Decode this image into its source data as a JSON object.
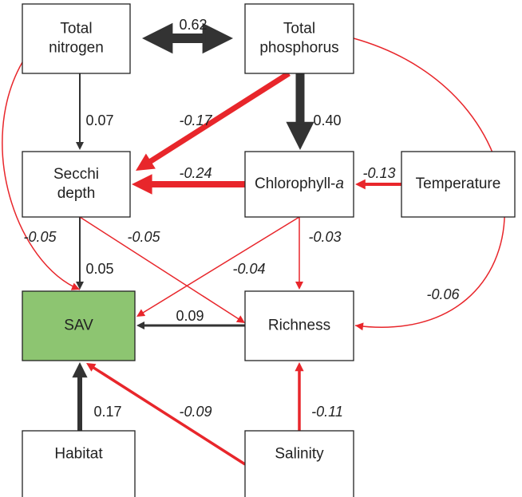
{
  "nodes": [
    {
      "label": "Total\nnitrogen"
    },
    {
      "label": "Total\nphosphorus"
    },
    {
      "label": "Secchi\ndepth"
    },
    {
      "label": "Chlorophyll-",
      "italic_suffix": "a"
    },
    {
      "label": "Temperature"
    },
    {
      "label": "SAV",
      "color": "#8dc571"
    },
    {
      "label": "Richness"
    },
    {
      "label": "Habitat"
    },
    {
      "label": "Salinity"
    }
  ],
  "edges": [
    {
      "from": 0,
      "to": 1,
      "label": "0.62",
      "color": "#333333"
    },
    {
      "from": 0,
      "to": 2,
      "label": "0.07",
      "color": "#333333"
    },
    {
      "from": 0,
      "to": 5,
      "label": "-0.05",
      "color": "#e8262b"
    },
    {
      "from": 1,
      "to": 2,
      "label": "-0.17",
      "color": "#e8262b"
    },
    {
      "from": 1,
      "to": 3,
      "label": "0.40",
      "color": "#333333"
    },
    {
      "from": 1,
      "to": 6,
      "label": "-0.06",
      "color": "#e8262b"
    },
    {
      "from": 3,
      "to": 2,
      "label": "-0.24",
      "color": "#e8262b"
    },
    {
      "from": 4,
      "to": 3,
      "label": "-0.13",
      "color": "#e8262b"
    },
    {
      "from": 2,
      "to": 5,
      "label": "0.05",
      "color": "#333333"
    },
    {
      "from": 2,
      "to": 6,
      "label": "-0.05",
      "color": "#e8262b"
    },
    {
      "from": 3,
      "to": 5,
      "label": "-0.04",
      "color": "#e8262b"
    },
    {
      "from": 3,
      "to": 6,
      "label": "-0.03",
      "color": "#e8262b"
    },
    {
      "from": 6,
      "to": 5,
      "label": "0.09",
      "color": "#333333"
    },
    {
      "from": 7,
      "to": 5,
      "label": "0.17",
      "color": "#333333"
    },
    {
      "from": 8,
      "to": 5,
      "label": "-0.09",
      "color": "#e8262b"
    },
    {
      "from": 8,
      "to": 6,
      "label": "-0.11",
      "color": "#e8262b"
    }
  ]
}
